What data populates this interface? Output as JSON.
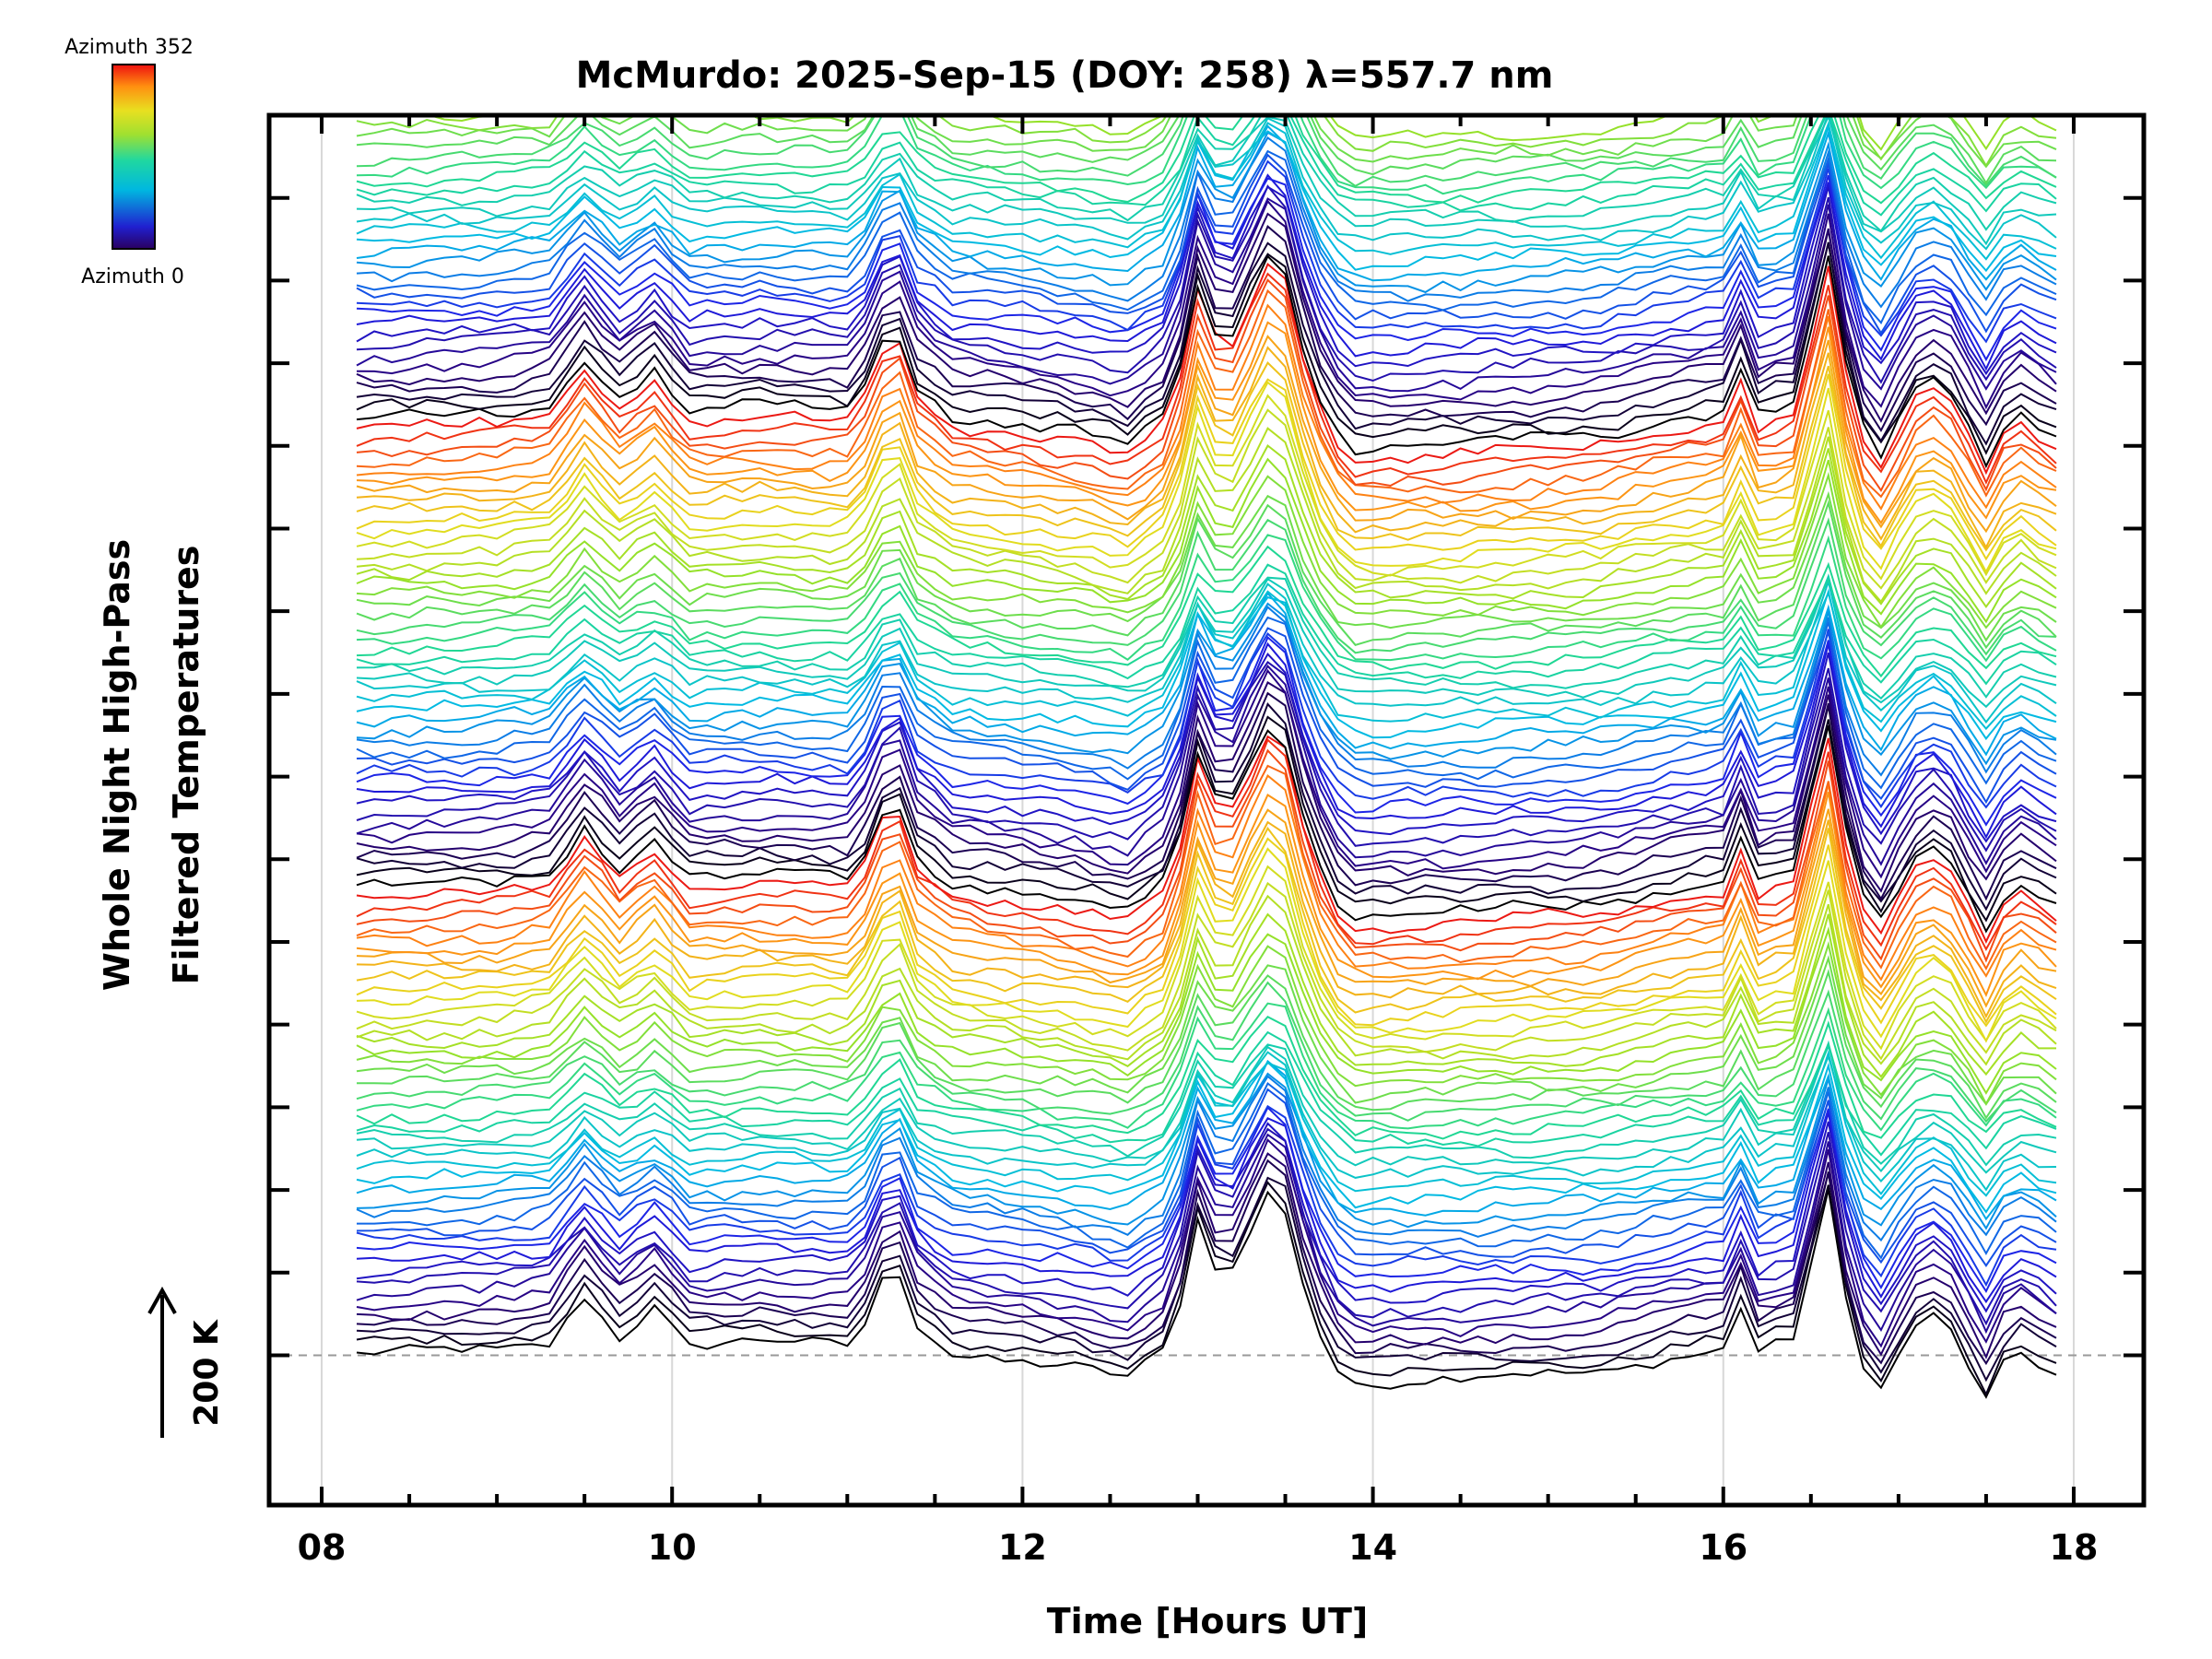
{
  "chart_data": {
    "type": "line",
    "title": "McMurdo: 2025-Sep-15 (DOY: 258) λ=557.7 nm",
    "xlabel": "Time [Hours UT]",
    "ylabel_line1": "Whole Night High-Pass",
    "ylabel_line2": "Filtered Temperatures",
    "xlim": [
      7.7,
      18.4
    ],
    "xticks": [
      8,
      10,
      12,
      14,
      16,
      18
    ],
    "xtick_labels": [
      "08",
      "10",
      "12",
      "14",
      "16",
      "18"
    ],
    "yticks_count": 15,
    "ylim_traces": [
      -1.8,
      14.9
    ],
    "scale_label": "200 K",
    "colorbar": {
      "top_label": "Azimuth 352",
      "bottom_label": "Azimuth 0",
      "min": 0,
      "max": 352
    },
    "n_series": 120,
    "series_offset": 0.125,
    "azimuth_cycle": 45,
    "t_start": 8.2,
    "t_end": 17.9,
    "t_step": 0.1,
    "base_profile": {
      "times": [
        8.2,
        9.0,
        9.3,
        9.5,
        9.7,
        9.9,
        10.1,
        10.5,
        11.0,
        11.15,
        11.25,
        11.4,
        11.6,
        12.3,
        12.6,
        12.85,
        13.0,
        13.15,
        13.45,
        13.65,
        13.85,
        14.5,
        15.3,
        15.5,
        15.7,
        16.0,
        16.1,
        16.2,
        16.4,
        16.6,
        16.75,
        16.9,
        17.15,
        17.3,
        17.5,
        17.65,
        17.9
      ],
      "values": [
        0.0,
        0.05,
        0.15,
        0.75,
        0.25,
        0.6,
        0.1,
        0.15,
        0.1,
        0.5,
        1.3,
        0.4,
        0.05,
        -0.15,
        -0.3,
        0.1,
        1.6,
        0.8,
        2.2,
        0.5,
        -0.35,
        -0.3,
        -0.2,
        -0.1,
        0.0,
        0.1,
        0.6,
        0.05,
        0.2,
        1.9,
        0.0,
        -0.45,
        0.55,
        0.3,
        -0.5,
        0.15,
        -0.2
      ]
    }
  }
}
